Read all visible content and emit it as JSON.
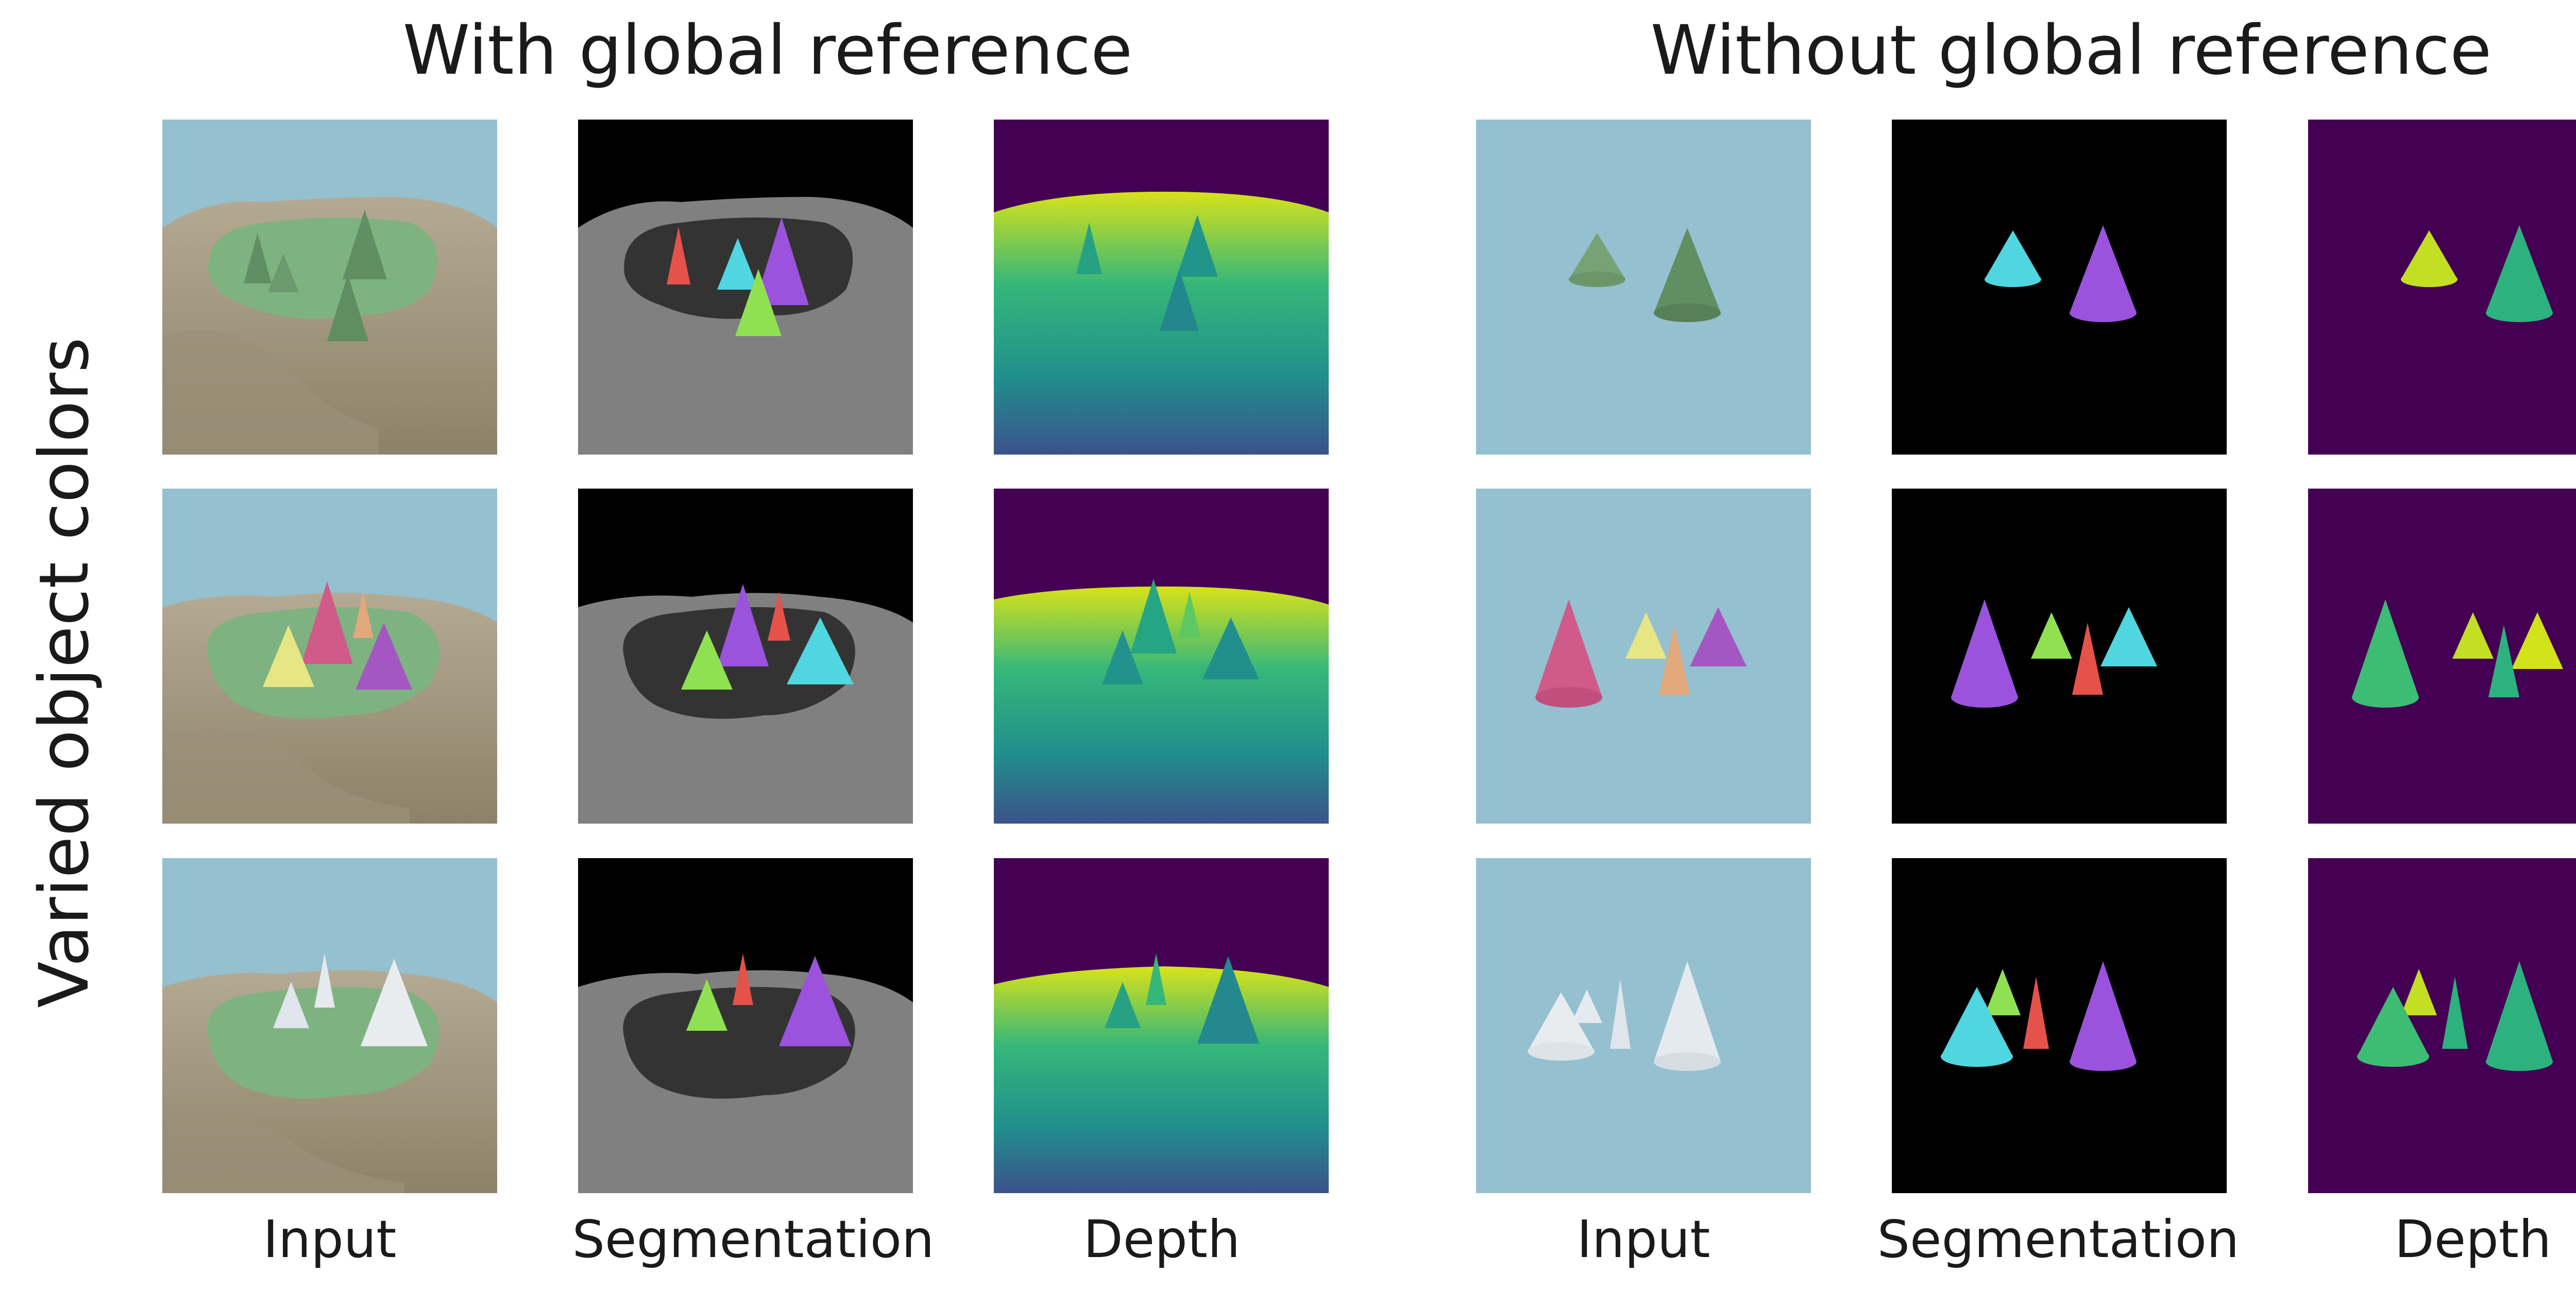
{
  "titles": {
    "with_global": "With global reference",
    "without_global": "Without global reference"
  },
  "row_label": "Varied object colors",
  "column_labels": {
    "input": "Input",
    "segmentation": "Segmentation",
    "depth": "Depth"
  },
  "colors": {
    "sky": "#94c0cf",
    "terrain": "#a89d88",
    "platform": "#7fb281",
    "segmentation_background": "#000000",
    "segmentation_terrain": "#808080",
    "segmentation_platform": "#333333",
    "depth_far": "#440154",
    "depth_mid": "#21908d",
    "depth_near": "#fde725"
  }
}
